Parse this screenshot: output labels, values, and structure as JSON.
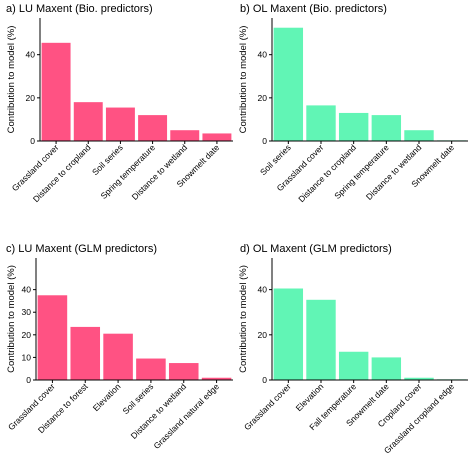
{
  "chart_data": [
    {
      "type": "bar",
      "title": "a) LU Maxent (Bio. predictors)",
      "ylabel": "Contribution to model (%)",
      "xlabel": "",
      "ylim": [
        0,
        57
      ],
      "yticks": [
        0,
        20,
        40
      ],
      "color": "#FF5283",
      "categories": [
        "Grassland cover",
        "Distance to cropland",
        "Soil series",
        "Spring temperature",
        "Distance to wetland",
        "Snowmelt date"
      ],
      "values": [
        45.5,
        18.0,
        15.5,
        12.0,
        5.0,
        3.5
      ]
    },
    {
      "type": "bar",
      "title": "b) OL Maxent (Bio. predictors)",
      "ylabel": "Contribution to model (%)",
      "xlabel": "",
      "ylim": [
        0,
        57
      ],
      "yticks": [
        0,
        20,
        40
      ],
      "color": "#61F5B5",
      "categories": [
        "Soil series",
        "Grassland cover",
        "Distance to cropland",
        "Spring temperature",
        "Distance to wetland",
        "Snowmelt date"
      ],
      "values": [
        52.5,
        16.5,
        13.0,
        12.0,
        5.0,
        0.3
      ]
    },
    {
      "type": "bar",
      "title": "c) LU Maxent (GLM predictors)",
      "ylabel": "Contribution to model (%)",
      "xlabel": "",
      "ylim": [
        0,
        54
      ],
      "yticks": [
        0,
        10,
        20,
        30,
        40
      ],
      "color": "#FF5283",
      "categories": [
        "Grassland cover",
        "Distance to forest",
        "Elevation",
        "Soil series",
        "Distance to wetland",
        "Grassland natural edge"
      ],
      "values": [
        37.5,
        23.5,
        20.5,
        9.5,
        7.5,
        1.0
      ]
    },
    {
      "type": "bar",
      "title": "d) OL Maxent (GLM predictors)",
      "ylabel": "Contribution to model (%)",
      "xlabel": "",
      "ylim": [
        0,
        54
      ],
      "yticks": [
        0,
        20,
        40
      ],
      "color": "#61F5B5",
      "categories": [
        "Grassland cover",
        "Elevation",
        "Fall temperature",
        "Snowmelt date",
        "Cropland cover",
        "Grassland cropland edge"
      ],
      "values": [
        40.5,
        35.5,
        12.5,
        10.0,
        1.0,
        0.3
      ]
    }
  ]
}
